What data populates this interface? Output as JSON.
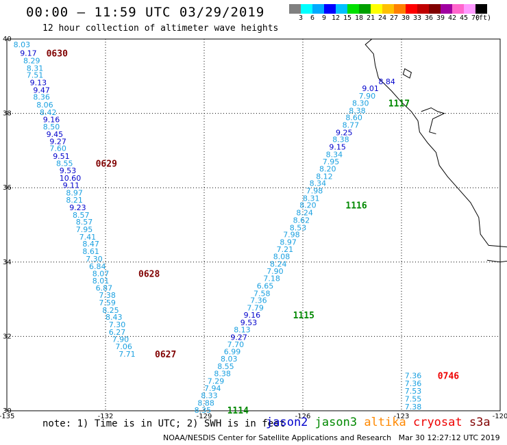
{
  "header": {
    "title": "00:00 – 11:59 UTC 03/29/2019",
    "subtitle": "12 hour collection of altimeter wave heights"
  },
  "legend": {
    "colors": [
      "#808080",
      "#00ffff",
      "#00aaff",
      "#0000ff",
      "#00c0ff",
      "#00e000",
      "#00a000",
      "#ffff00",
      "#ffc000",
      "#ff8000",
      "#ff0000",
      "#c00000",
      "#800000",
      "#a000a0",
      "#ff66cc",
      "#ff99ff",
      "#000000"
    ],
    "ticks": [
      "3",
      "6",
      "9",
      "12",
      "15",
      "18",
      "21",
      "24",
      "27",
      "30",
      "33",
      "36",
      "39",
      "42",
      "45",
      "70",
      "(ft)"
    ]
  },
  "axes": {
    "lon_labels": [
      "-135",
      "-132",
      "-129",
      "-126",
      "-123",
      "-120"
    ],
    "lat_labels": [
      "40",
      "38",
      "36",
      "34",
      "32",
      "30"
    ]
  },
  "satellite_colors": {
    "jason2": "#0000cc",
    "jason3": "#008800",
    "altika": "#ff8800",
    "cryosat": "#ee0000",
    "s3a": "#800000",
    "light": "#1aa0e0"
  },
  "tracks": [
    {
      "satellite": "s3a",
      "values": [
        {
          "text": "8.03",
          "lon": -134.8,
          "lat": 39.85,
          "c": "light"
        },
        {
          "text": "9.17",
          "lon": -134.6,
          "lat": 39.62,
          "c": "dark"
        },
        {
          "text": "8.29",
          "lon": -134.5,
          "lat": 39.42,
          "c": "light"
        },
        {
          "text": "8.31",
          "lon": -134.4,
          "lat": 39.22,
          "c": "light"
        },
        {
          "text": "7.51",
          "lon": -134.4,
          "lat": 39.03,
          "c": "light"
        },
        {
          "text": "9.13",
          "lon": -134.3,
          "lat": 38.83,
          "c": "dark"
        },
        {
          "text": "9.47",
          "lon": -134.2,
          "lat": 38.63,
          "c": "dark"
        },
        {
          "text": "8.36",
          "lon": -134.2,
          "lat": 38.44,
          "c": "light"
        },
        {
          "text": "8.06",
          "lon": -134.1,
          "lat": 38.23,
          "c": "light"
        },
        {
          "text": "8.42",
          "lon": -134.0,
          "lat": 38.03,
          "c": "light"
        },
        {
          "text": "9.16",
          "lon": -133.9,
          "lat": 37.84,
          "c": "dark"
        },
        {
          "text": "8.50",
          "lon": -133.9,
          "lat": 37.64,
          "c": "light"
        },
        {
          "text": "9.45",
          "lon": -133.8,
          "lat": 37.44,
          "c": "dark"
        },
        {
          "text": "9.27",
          "lon": -133.7,
          "lat": 37.25,
          "c": "dark"
        },
        {
          "text": "7.60",
          "lon": -133.7,
          "lat": 37.06,
          "c": "light"
        },
        {
          "text": "9.51",
          "lon": -133.6,
          "lat": 36.85,
          "c": "dark"
        },
        {
          "text": "8.55",
          "lon": -133.5,
          "lat": 36.66,
          "c": "light"
        },
        {
          "text": "9.53",
          "lon": -133.4,
          "lat": 36.46,
          "c": "dark"
        },
        {
          "text": "10.60",
          "lon": -133.4,
          "lat": 36.26,
          "c": "dark"
        },
        {
          "text": "9.11",
          "lon": -133.3,
          "lat": 36.07,
          "c": "dark"
        },
        {
          "text": "8.97",
          "lon": -133.2,
          "lat": 35.87,
          "c": "light"
        },
        {
          "text": "8.21",
          "lon": -133.2,
          "lat": 35.67,
          "c": "light"
        },
        {
          "text": "9.23",
          "lon": -133.1,
          "lat": 35.47,
          "c": "dark"
        },
        {
          "text": "8.57",
          "lon": -133.0,
          "lat": 35.27,
          "c": "light"
        },
        {
          "text": "8.57",
          "lon": -132.9,
          "lat": 35.08,
          "c": "light"
        },
        {
          "text": "7.95",
          "lon": -132.9,
          "lat": 34.88,
          "c": "light"
        },
        {
          "text": "7.41",
          "lon": -132.8,
          "lat": 34.68,
          "c": "light"
        },
        {
          "text": "8.47",
          "lon": -132.7,
          "lat": 34.49,
          "c": "light"
        },
        {
          "text": "8.61",
          "lon": -132.7,
          "lat": 34.29,
          "c": "light"
        },
        {
          "text": "7.30",
          "lon": -132.6,
          "lat": 34.09,
          "c": "light"
        },
        {
          "text": "6.84",
          "lon": -132.5,
          "lat": 33.89,
          "c": "light"
        },
        {
          "text": "8.07",
          "lon": -132.4,
          "lat": 33.69,
          "c": "light"
        },
        {
          "text": "8.01",
          "lon": -132.4,
          "lat": 33.5,
          "c": "light"
        },
        {
          "text": "6.87",
          "lon": -132.3,
          "lat": 33.31,
          "c": "light"
        },
        {
          "text": "7.38",
          "lon": -132.2,
          "lat": 33.11,
          "c": "light"
        },
        {
          "text": "7.59",
          "lon": -132.2,
          "lat": 32.91,
          "c": "light"
        },
        {
          "text": "8.25",
          "lon": -132.1,
          "lat": 32.71,
          "c": "light"
        },
        {
          "text": "8.43",
          "lon": -132.0,
          "lat": 32.52,
          "c": "light"
        },
        {
          "text": "7.30",
          "lon": -131.9,
          "lat": 32.32,
          "c": "light"
        },
        {
          "text": "6.27",
          "lon": -131.9,
          "lat": 32.12,
          "c": "light"
        },
        {
          "text": "7.90",
          "lon": -131.8,
          "lat": 31.92,
          "c": "light"
        },
        {
          "text": "7.06",
          "lon": -131.7,
          "lat": 31.73,
          "c": "light"
        },
        {
          "text": "7.71",
          "lon": -131.6,
          "lat": 31.53,
          "c": "light"
        }
      ],
      "passes": [
        {
          "text": "0630",
          "lon": -133.8,
          "lat": 39.62
        },
        {
          "text": "0629",
          "lon": -132.3,
          "lat": 36.66
        },
        {
          "text": "0628",
          "lon": -131.0,
          "lat": 33.69
        },
        {
          "text": "0627",
          "lon": -130.5,
          "lat": 31.53
        }
      ]
    },
    {
      "satellite": "jason3",
      "values": [
        {
          "text": "8.35",
          "lon": -129.3,
          "lat": 30.02,
          "c": "light"
        },
        {
          "text": "8.88",
          "lon": -129.2,
          "lat": 30.21,
          "c": "light"
        },
        {
          "text": "8.33",
          "lon": -129.1,
          "lat": 30.41,
          "c": "light"
        },
        {
          "text": "7.94",
          "lon": -129.0,
          "lat": 30.61,
          "c": "light"
        },
        {
          "text": "7.29",
          "lon": -128.9,
          "lat": 30.8,
          "c": "light"
        },
        {
          "text": "8.38",
          "lon": -128.7,
          "lat": 31.0,
          "c": "light"
        },
        {
          "text": "8.55",
          "lon": -128.6,
          "lat": 31.2,
          "c": "light"
        },
        {
          "text": "8.03",
          "lon": -128.5,
          "lat": 31.4,
          "c": "light"
        },
        {
          "text": "6.99",
          "lon": -128.4,
          "lat": 31.59,
          "c": "light"
        },
        {
          "text": "7.70",
          "lon": -128.3,
          "lat": 31.79,
          "c": "light"
        },
        {
          "text": "9.27",
          "lon": -128.2,
          "lat": 31.98,
          "c": "dark"
        },
        {
          "text": "8.13",
          "lon": -128.1,
          "lat": 32.18,
          "c": "light"
        },
        {
          "text": "9.53",
          "lon": -127.9,
          "lat": 32.38,
          "c": "dark"
        },
        {
          "text": "9.16",
          "lon": -127.8,
          "lat": 32.58,
          "c": "dark"
        },
        {
          "text": "7.79",
          "lon": -127.7,
          "lat": 32.77,
          "c": "light"
        },
        {
          "text": "7.36",
          "lon": -127.6,
          "lat": 32.97,
          "c": "light"
        },
        {
          "text": "7.58",
          "lon": -127.5,
          "lat": 33.16,
          "c": "light"
        },
        {
          "text": "6.65",
          "lon": -127.4,
          "lat": 33.36,
          "c": "light"
        },
        {
          "text": "7.18",
          "lon": -127.2,
          "lat": 33.56,
          "c": "light"
        },
        {
          "text": "7.90",
          "lon": -127.1,
          "lat": 33.76,
          "c": "light"
        },
        {
          "text": "8.24",
          "lon": -127.0,
          "lat": 33.95,
          "c": "light"
        },
        {
          "text": "8.08",
          "lon": -126.9,
          "lat": 34.15,
          "c": "light"
        },
        {
          "text": "7.21",
          "lon": -126.8,
          "lat": 34.35,
          "c": "light"
        },
        {
          "text": "8.97",
          "lon": -126.7,
          "lat": 34.54,
          "c": "light"
        },
        {
          "text": "7.98",
          "lon": -126.6,
          "lat": 34.74,
          "c": "light"
        },
        {
          "text": "8.53",
          "lon": -126.4,
          "lat": 34.93,
          "c": "light"
        },
        {
          "text": "8.62",
          "lon": -126.3,
          "lat": 35.13,
          "c": "light"
        },
        {
          "text": "8.24",
          "lon": -126.2,
          "lat": 35.33,
          "c": "light"
        },
        {
          "text": "8.20",
          "lon": -126.1,
          "lat": 35.53,
          "c": "light"
        },
        {
          "text": "8.31",
          "lon": -126.0,
          "lat": 35.72,
          "c": "light"
        },
        {
          "text": "7.98",
          "lon": -125.9,
          "lat": 35.92,
          "c": "light"
        },
        {
          "text": "8.34",
          "lon": -125.8,
          "lat": 36.12,
          "c": "light"
        },
        {
          "text": "8.12",
          "lon": -125.6,
          "lat": 36.31,
          "c": "light"
        },
        {
          "text": "8.20",
          "lon": -125.5,
          "lat": 36.51,
          "c": "light"
        },
        {
          "text": "7.95",
          "lon": -125.4,
          "lat": 36.7,
          "c": "light"
        },
        {
          "text": "8.34",
          "lon": -125.3,
          "lat": 36.9,
          "c": "light"
        },
        {
          "text": "9.15",
          "lon": -125.2,
          "lat": 37.1,
          "c": "dark"
        },
        {
          "text": "8.38",
          "lon": -125.1,
          "lat": 37.3,
          "c": "light"
        },
        {
          "text": "9.25",
          "lon": -125.0,
          "lat": 37.49,
          "c": "dark"
        },
        {
          "text": "8.77",
          "lon": -124.8,
          "lat": 37.69,
          "c": "light"
        },
        {
          "text": "8.60",
          "lon": -124.7,
          "lat": 37.89,
          "c": "light"
        },
        {
          "text": "8.38",
          "lon": -124.6,
          "lat": 38.08,
          "c": "light"
        },
        {
          "text": "8.30",
          "lon": -124.5,
          "lat": 38.28,
          "c": "light"
        },
        {
          "text": "7.90",
          "lon": -124.3,
          "lat": 38.47,
          "c": "light"
        },
        {
          "text": "9.01",
          "lon": -124.2,
          "lat": 38.67,
          "c": "dark"
        },
        {
          "text": "8.84",
          "lon": -123.7,
          "lat": 38.86,
          "c": "dark"
        }
      ],
      "passes": [
        {
          "text": "1114",
          "lon": -128.3,
          "lat": 30.02
        },
        {
          "text": "1115",
          "lon": -126.3,
          "lat": 32.58
        },
        {
          "text": "1116",
          "lon": -124.7,
          "lat": 35.53
        },
        {
          "text": "1117",
          "lon": -123.4,
          "lat": 38.28
        }
      ]
    },
    {
      "satellite": "cryosat",
      "values": [
        {
          "text": "7.36",
          "lon": -122.9,
          "lat": 30.95,
          "c": "light"
        },
        {
          "text": "7.36",
          "lon": -122.9,
          "lat": 30.74,
          "c": "light"
        },
        {
          "text": "7.53",
          "lon": -122.9,
          "lat": 30.53,
          "c": "light"
        },
        {
          "text": "7.55",
          "lon": -122.9,
          "lat": 30.32,
          "c": "light"
        },
        {
          "text": "7.38",
          "lon": -122.9,
          "lat": 30.11,
          "c": "light"
        }
      ],
      "passes": [
        {
          "text": "0746",
          "lon": -121.9,
          "lat": 30.95
        }
      ]
    }
  ],
  "footer": {
    "note": "note: 1) Time is in UTC; 2) SWH is in feet",
    "satellites": [
      {
        "name": "jason2",
        "color": "#0000cc"
      },
      {
        "name": "jason3",
        "color": "#008800"
      },
      {
        "name": "altika",
        "color": "#ff8800"
      },
      {
        "name": "cryosat",
        "color": "#ee0000"
      },
      {
        "name": "s3a",
        "color": "#800000"
      }
    ],
    "credit": "NOAA/NESDIS Center for Satellite Applications and Research   Mar 30 12:27:12 UTC 2019"
  }
}
